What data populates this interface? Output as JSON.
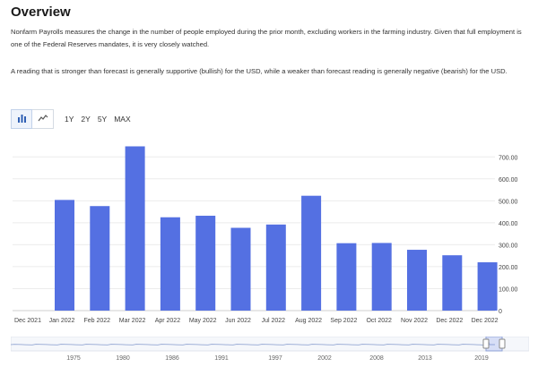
{
  "header": {
    "title": "Overview"
  },
  "description": {
    "paragraph1": "Nonfarm Payrolls measures the change in the number of people employed during the prior month, excluding workers in the farming industry. Given that full employment is one of the Federal Reserves mandates, it is very closely watched.",
    "paragraph2": "A reading that is stronger than forecast is generally supportive (bullish) for the USD, while a weaker than forecast reading is generally negative (bearish) for the USD."
  },
  "toolbar": {
    "bar_icon": "bar-chart-icon",
    "line_icon": "line-chart-icon",
    "ranges": [
      "1Y",
      "2Y",
      "5Y",
      "MAX"
    ]
  },
  "colors": {
    "bar": "#5470e2",
    "grid": "#ececec",
    "axis_text": "#444444",
    "navigator_line": "#9fb0d8"
  },
  "chart_data": {
    "type": "bar",
    "categories": [
      "Jan 2022",
      "Feb 2022",
      "Mar 2022",
      "Apr 2022",
      "May 2022",
      "Jun 2022",
      "Jul 2022",
      "Aug 2022",
      "Sep 2022",
      "Oct 2022",
      "Nov 2022",
      "Dec 2022",
      "Dec 2022"
    ],
    "values": [
      504,
      476,
      748,
      425,
      432,
      377,
      392,
      523,
      307,
      308,
      277,
      252,
      220
    ],
    "x_tick_labels": [
      "Dec 2021",
      "Jan 2022",
      "Feb 2022",
      "Mar 2022",
      "Apr 2022",
      "May 2022",
      "Jun 2022",
      "Jul 2022",
      "Aug 2022",
      "Sep 2022",
      "Oct 2022",
      "Nov 2022",
      "Dec 2022",
      "Dec 2022"
    ],
    "y_ticks": [
      "0",
      "100.00",
      "200.00",
      "300.00",
      "400.00",
      "500.00",
      "600.00",
      "700.00"
    ],
    "ylim": [
      0,
      750
    ],
    "grid": true,
    "y_axis_position": "right"
  },
  "navigator": {
    "labels": [
      "1975",
      "1980",
      "1986",
      "1991",
      "1997",
      "2002",
      "2008",
      "2013",
      "2019"
    ]
  }
}
